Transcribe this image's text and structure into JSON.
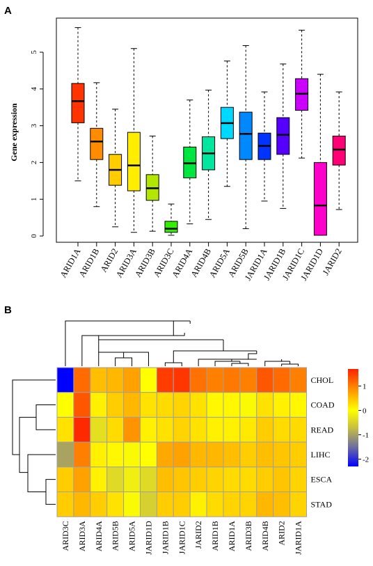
{
  "chart_data": [
    {
      "type": "box",
      "panel_label": "A",
      "ylabel": "Gene expression",
      "ylim": [
        0,
        5.5
      ],
      "yticks": [
        0,
        1,
        2,
        3,
        4,
        5
      ],
      "categories": [
        "ARID1A",
        "ARID1B",
        "ARID2",
        "ARID3A",
        "ARID3B",
        "ARID3C",
        "ARID4A",
        "ARID4B",
        "ARID5A",
        "ARID5B",
        "JARID1A",
        "JARID1B",
        "JARID1C",
        "JARID1D",
        "JARID2"
      ],
      "boxes": [
        {
          "min": 1.5,
          "q1": 3.08,
          "median": 3.67,
          "q3": 4.15,
          "max": 5.67,
          "color": "#ff3300"
        },
        {
          "min": 0.8,
          "q1": 2.08,
          "median": 2.57,
          "q3": 2.93,
          "max": 4.17,
          "color": "#ff8c00"
        },
        {
          "min": 0.25,
          "q1": 1.38,
          "median": 1.8,
          "q3": 2.22,
          "max": 3.45,
          "color": "#ffcc00"
        },
        {
          "min": 0.1,
          "q1": 1.23,
          "median": 1.92,
          "q3": 2.82,
          "max": 5.1,
          "color": "#ffee00"
        },
        {
          "min": 0.13,
          "q1": 0.97,
          "median": 1.3,
          "q3": 1.67,
          "max": 2.72,
          "color": "#b3e600"
        },
        {
          "min": 0.02,
          "q1": 0.1,
          "median": 0.2,
          "q3": 0.4,
          "max": 0.87,
          "color": "#33ee00"
        },
        {
          "min": 0.33,
          "q1": 1.58,
          "median": 1.98,
          "q3": 2.42,
          "max": 3.7,
          "color": "#00e640"
        },
        {
          "min": 0.45,
          "q1": 1.8,
          "median": 2.25,
          "q3": 2.7,
          "max": 3.97,
          "color": "#00e6a0"
        },
        {
          "min": 1.35,
          "q1": 2.65,
          "median": 3.07,
          "q3": 3.5,
          "max": 4.76,
          "color": "#00d9ff"
        },
        {
          "min": 0.2,
          "q1": 2.08,
          "median": 2.78,
          "q3": 3.37,
          "max": 5.18,
          "color": "#0088ff"
        },
        {
          "min": 0.95,
          "q1": 2.08,
          "median": 2.45,
          "q3": 2.8,
          "max": 3.92,
          "color": "#0033ff"
        },
        {
          "min": 0.75,
          "q1": 2.22,
          "median": 2.75,
          "q3": 3.22,
          "max": 4.68,
          "color": "#5500ff"
        },
        {
          "min": 2.12,
          "q1": 3.42,
          "median": 3.87,
          "q3": 4.28,
          "max": 5.6,
          "color": "#cc00ff"
        },
        {
          "min": 0.02,
          "q1": 0.02,
          "median": 0.83,
          "q3": 2.0,
          "max": 4.4,
          "color": "#ff00cc"
        },
        {
          "min": 0.72,
          "q1": 1.93,
          "median": 2.35,
          "q3": 2.72,
          "max": 3.92,
          "color": "#ff0077"
        }
      ]
    },
    {
      "type": "heatmap",
      "panel_label": "B",
      "columns": [
        "ARID3C",
        "ARID3A",
        "ARID4A",
        "ARID5B",
        "ARID5A",
        "JARID1D",
        "JARID1B",
        "JARID1C",
        "JARID2",
        "ARID1B",
        "ARID1A",
        "ARID3B",
        "ARID4B",
        "ARID2",
        "JARID1A"
      ],
      "rows": [
        "CHOL",
        "COAD",
        "READ",
        "LIHC",
        "ESCA",
        "STAD"
      ],
      "values": [
        [
          -2.3,
          1.15,
          0.55,
          0.6,
          0.75,
          0.1,
          1.5,
          1.55,
          1.1,
          1.0,
          1.05,
          1.0,
          1.3,
          1.15,
          1.0
        ],
        [
          0.1,
          1.3,
          0.2,
          0.45,
          0.6,
          0.3,
          0.35,
          0.4,
          0.3,
          0.15,
          0.15,
          0.05,
          0.3,
          0.2,
          0.15
        ],
        [
          0.3,
          1.65,
          -0.2,
          0.35,
          0.85,
          0.2,
          0.3,
          0.4,
          0.3,
          0.2,
          0.2,
          0.25,
          0.45,
          0.35,
          0.35
        ],
        [
          -0.85,
          1.0,
          0.2,
          0.15,
          0.05,
          0.1,
          0.7,
          0.75,
          0.6,
          0.6,
          0.55,
          0.45,
          0.55,
          0.5,
          0.45
        ],
        [
          0.45,
          0.75,
          0.2,
          -0.25,
          -0.05,
          -0.25,
          0.55,
          0.5,
          0.45,
          0.4,
          0.35,
          0.35,
          0.45,
          0.5,
          0.4
        ],
        [
          0.45,
          0.6,
          0.45,
          0.3,
          0.05,
          -0.35,
          0.45,
          0.45,
          0.2,
          0.35,
          0.4,
          0.4,
          0.6,
          0.55,
          0.4
        ]
      ],
      "legend": {
        "ticks": [
          1,
          0,
          -1,
          -2
        ],
        "range": [
          -2.3,
          1.7
        ]
      }
    }
  ]
}
